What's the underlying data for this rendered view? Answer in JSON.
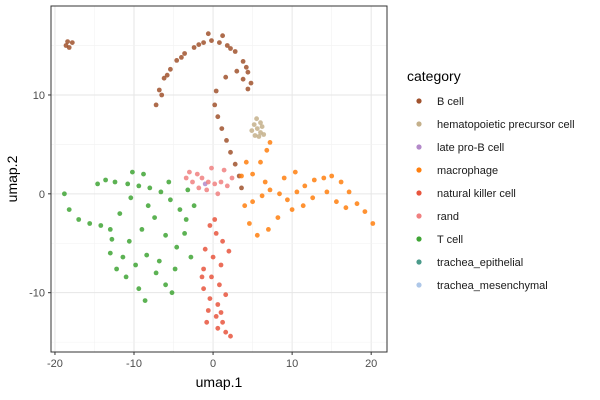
{
  "chart_data": {
    "type": "scatter",
    "xlabel": "umap.1",
    "ylabel": "umap.2",
    "xlim": [
      -20.5,
      22
    ],
    "ylim": [
      -16,
      19
    ],
    "x_ticks": [
      -20,
      -10,
      0,
      10,
      20
    ],
    "y_ticks": [
      -10,
      0,
      10
    ],
    "x_tick_labels": [
      "-20",
      "-10",
      "0",
      "10",
      "20"
    ],
    "y_tick_labels": [
      "-10",
      "0",
      "10"
    ],
    "grid": true,
    "legend": {
      "title": "category",
      "placement": "right",
      "entries": [
        {
          "label": "B cell",
          "color": "#a0522d"
        },
        {
          "label": "hematopoietic precursor cell",
          "color": "#c4b08b"
        },
        {
          "label": "late pro-B cell",
          "color": "#b389c9"
        },
        {
          "label": "macrophage",
          "color": "#ff7f0e"
        },
        {
          "label": "natural killer cell",
          "color": "#e8553d"
        },
        {
          "label": "rand",
          "color": "#f08080"
        },
        {
          "label": "T cell",
          "color": "#3fa535"
        },
        {
          "label": "trachea_epithelial",
          "color": "#4a9a8a"
        },
        {
          "label": "trachea_mesenchymal",
          "color": "#aec7e8"
        }
      ]
    },
    "series": [
      {
        "name": "B cell",
        "color": "#a0522d",
        "shape": "arc from left tail up over top and down to center",
        "points": [
          [
            -18.6,
            15.0
          ],
          [
            -18.2,
            14.8
          ],
          [
            -17.8,
            15.3
          ],
          [
            -18.4,
            15.4
          ],
          [
            -7.2,
            9.0
          ],
          [
            -6.8,
            10.5
          ],
          [
            -6.2,
            11.7
          ],
          [
            -5.4,
            12.6
          ],
          [
            -4.6,
            13.5
          ],
          [
            -3.6,
            14.2
          ],
          [
            -2.4,
            14.8
          ],
          [
            -1.2,
            15.3
          ],
          [
            -0.2,
            15.5
          ],
          [
            0.8,
            15.3
          ],
          [
            1.8,
            15.0
          ],
          [
            2.8,
            14.4
          ],
          [
            3.8,
            13.4
          ],
          [
            4.4,
            12.3
          ],
          [
            4.8,
            11.2
          ],
          [
            4.4,
            10.6
          ],
          [
            3.8,
            11.6
          ],
          [
            3.0,
            12.4
          ],
          [
            1.6,
            11.8
          ],
          [
            0.4,
            10.4
          ],
          [
            0.2,
            9.0
          ],
          [
            0.6,
            7.8
          ],
          [
            1.1,
            6.6
          ],
          [
            1.7,
            5.4
          ],
          [
            2.2,
            4.2
          ],
          [
            2.8,
            3.0
          ],
          [
            3.3,
            1.8
          ],
          [
            3.6,
            0.6
          ],
          [
            -6.5,
            10.0
          ],
          [
            -5.8,
            12.0
          ],
          [
            -4.0,
            13.8
          ],
          [
            -1.8,
            15.1
          ],
          [
            2.2,
            14.7
          ],
          [
            4.2,
            12.8
          ],
          [
            -0.6,
            16.2
          ],
          [
            1.2,
            16.0
          ]
        ]
      },
      {
        "name": "hematopoietic precursor cell",
        "color": "#c4b08b",
        "shape": "small cluster",
        "points": [
          [
            5.2,
            7.0
          ],
          [
            5.6,
            6.6
          ],
          [
            6.0,
            6.2
          ],
          [
            5.8,
            5.8
          ],
          [
            6.4,
            6.0
          ],
          [
            5.5,
            7.6
          ],
          [
            6.2,
            6.8
          ],
          [
            4.9,
            6.4
          ],
          [
            5.3,
            5.9
          ],
          [
            6.0,
            7.2
          ]
        ]
      },
      {
        "name": "late pro-B cell",
        "color": "#b389c9",
        "shape": "single point",
        "points": [
          [
            -1.0,
            1.0
          ]
        ]
      },
      {
        "name": "macrophage",
        "color": "#ff7f0e",
        "shape": "large cluster with arms to the right and up",
        "points": [
          [
            4.0,
            -1.2
          ],
          [
            5.0,
            -0.8
          ],
          [
            6.2,
            -0.2
          ],
          [
            7.2,
            0.4
          ],
          [
            8.4,
            0.0
          ],
          [
            9.4,
            -0.6
          ],
          [
            10.6,
            0.2
          ],
          [
            11.6,
            0.8
          ],
          [
            12.8,
            1.4
          ],
          [
            14.0,
            1.6
          ],
          [
            15.0,
            1.8
          ],
          [
            16.2,
            1.2
          ],
          [
            17.2,
            0.2
          ],
          [
            18.2,
            -1.0
          ],
          [
            19.2,
            -1.8
          ],
          [
            20.2,
            -3.0
          ],
          [
            5.0,
            2.0
          ],
          [
            6.0,
            3.2
          ],
          [
            6.8,
            4.4
          ],
          [
            7.2,
            5.2
          ],
          [
            4.2,
            3.2
          ],
          [
            3.6,
            1.8
          ],
          [
            4.6,
            -3.0
          ],
          [
            5.6,
            -4.2
          ],
          [
            7.0,
            -3.6
          ],
          [
            8.2,
            -2.4
          ],
          [
            10.0,
            -1.6
          ],
          [
            11.4,
            -1.2
          ],
          [
            12.6,
            -0.4
          ],
          [
            14.4,
            0.2
          ],
          [
            15.6,
            -0.8
          ],
          [
            16.8,
            -1.4
          ],
          [
            9.0,
            1.6
          ],
          [
            10.4,
            2.2
          ],
          [
            6.6,
            1.2
          ]
        ]
      },
      {
        "name": "natural killer cell",
        "color": "#e8553d",
        "shape": "vertical cluster below center",
        "points": [
          [
            -0.4,
            -3.2
          ],
          [
            0.4,
            -4.0
          ],
          [
            1.2,
            -4.8
          ],
          [
            -1.0,
            -5.6
          ],
          [
            0.0,
            -6.4
          ],
          [
            1.0,
            -7.2
          ],
          [
            -1.2,
            -7.6
          ],
          [
            -0.2,
            -8.4
          ],
          [
            0.8,
            -9.2
          ],
          [
            -1.2,
            -9.6
          ],
          [
            -0.4,
            -10.6
          ],
          [
            0.6,
            -11.2
          ],
          [
            -0.6,
            -11.8
          ],
          [
            0.4,
            -12.4
          ],
          [
            1.2,
            -13.0
          ],
          [
            0.6,
            -13.6
          ],
          [
            1.6,
            -14.0
          ],
          [
            2.2,
            -14.4
          ],
          [
            1.0,
            -12.0
          ],
          [
            -1.4,
            -8.4
          ],
          [
            2.0,
            -5.8
          ],
          [
            1.6,
            -10.2
          ],
          [
            -0.8,
            -13.0
          ],
          [
            0.2,
            -2.6
          ]
        ]
      },
      {
        "name": "rand",
        "color": "#f08080",
        "shape": "horizontal band near origin",
        "points": [
          [
            -3.0,
            2.2
          ],
          [
            -2.0,
            2.0
          ],
          [
            -1.4,
            1.6
          ],
          [
            -0.6,
            1.2
          ],
          [
            0.2,
            1.0
          ],
          [
            1.0,
            1.2
          ],
          [
            1.8,
            0.8
          ],
          [
            -2.6,
            1.2
          ],
          [
            -1.8,
            0.6
          ],
          [
            -0.8,
            0.4
          ],
          [
            0.6,
            0.0
          ],
          [
            1.4,
            2.4
          ],
          [
            -0.2,
            2.6
          ],
          [
            2.4,
            1.6
          ],
          [
            -3.4,
            1.6
          ]
        ]
      },
      {
        "name": "T cell",
        "color": "#3fa535",
        "shape": "large cluster on left",
        "points": [
          [
            -18.8,
            0.0
          ],
          [
            -18.2,
            -1.6
          ],
          [
            -17.0,
            -2.6
          ],
          [
            -15.6,
            -3.0
          ],
          [
            -14.2,
            -3.2
          ],
          [
            -13.0,
            -3.6
          ],
          [
            -14.6,
            1.0
          ],
          [
            -13.6,
            1.4
          ],
          [
            -12.4,
            1.2
          ],
          [
            -10.8,
            1.0
          ],
          [
            -9.4,
            0.8
          ],
          [
            -8.0,
            0.6
          ],
          [
            -6.6,
            0.2
          ],
          [
            -5.4,
            -0.6
          ],
          [
            -4.2,
            -1.6
          ],
          [
            -3.4,
            -2.6
          ],
          [
            -13.0,
            -6.0
          ],
          [
            -12.2,
            -7.6
          ],
          [
            -11.0,
            -8.4
          ],
          [
            -9.8,
            -7.2
          ],
          [
            -8.4,
            -6.2
          ],
          [
            -7.2,
            -8.0
          ],
          [
            -6.0,
            -9.2
          ],
          [
            -5.2,
            -10.0
          ],
          [
            -8.6,
            -10.8
          ],
          [
            -9.4,
            -9.6
          ],
          [
            -10.6,
            -4.8
          ],
          [
            -9.0,
            -3.6
          ],
          [
            -7.4,
            -2.4
          ],
          [
            -6.0,
            -4.2
          ],
          [
            -4.6,
            -5.4
          ],
          [
            -3.6,
            -4.0
          ],
          [
            -2.8,
            -6.4
          ],
          [
            -2.4,
            -1.2
          ],
          [
            -3.2,
            0.4
          ],
          [
            -11.8,
            -2.0
          ],
          [
            -10.4,
            -0.4
          ],
          [
            -8.2,
            -1.2
          ],
          [
            -6.8,
            -6.8
          ],
          [
            -4.8,
            -7.6
          ],
          [
            -12.8,
            -4.6
          ],
          [
            -11.4,
            -6.4
          ],
          [
            -5.6,
            1.2
          ],
          [
            -8.8,
            2.0
          ],
          [
            -10.2,
            2.2
          ]
        ]
      },
      {
        "name": "trachea_epithelial",
        "color": "#4a9a8a",
        "shape": "not visible",
        "points": []
      },
      {
        "name": "trachea_mesenchymal",
        "color": "#aec7e8",
        "shape": "not visible",
        "points": []
      }
    ]
  }
}
